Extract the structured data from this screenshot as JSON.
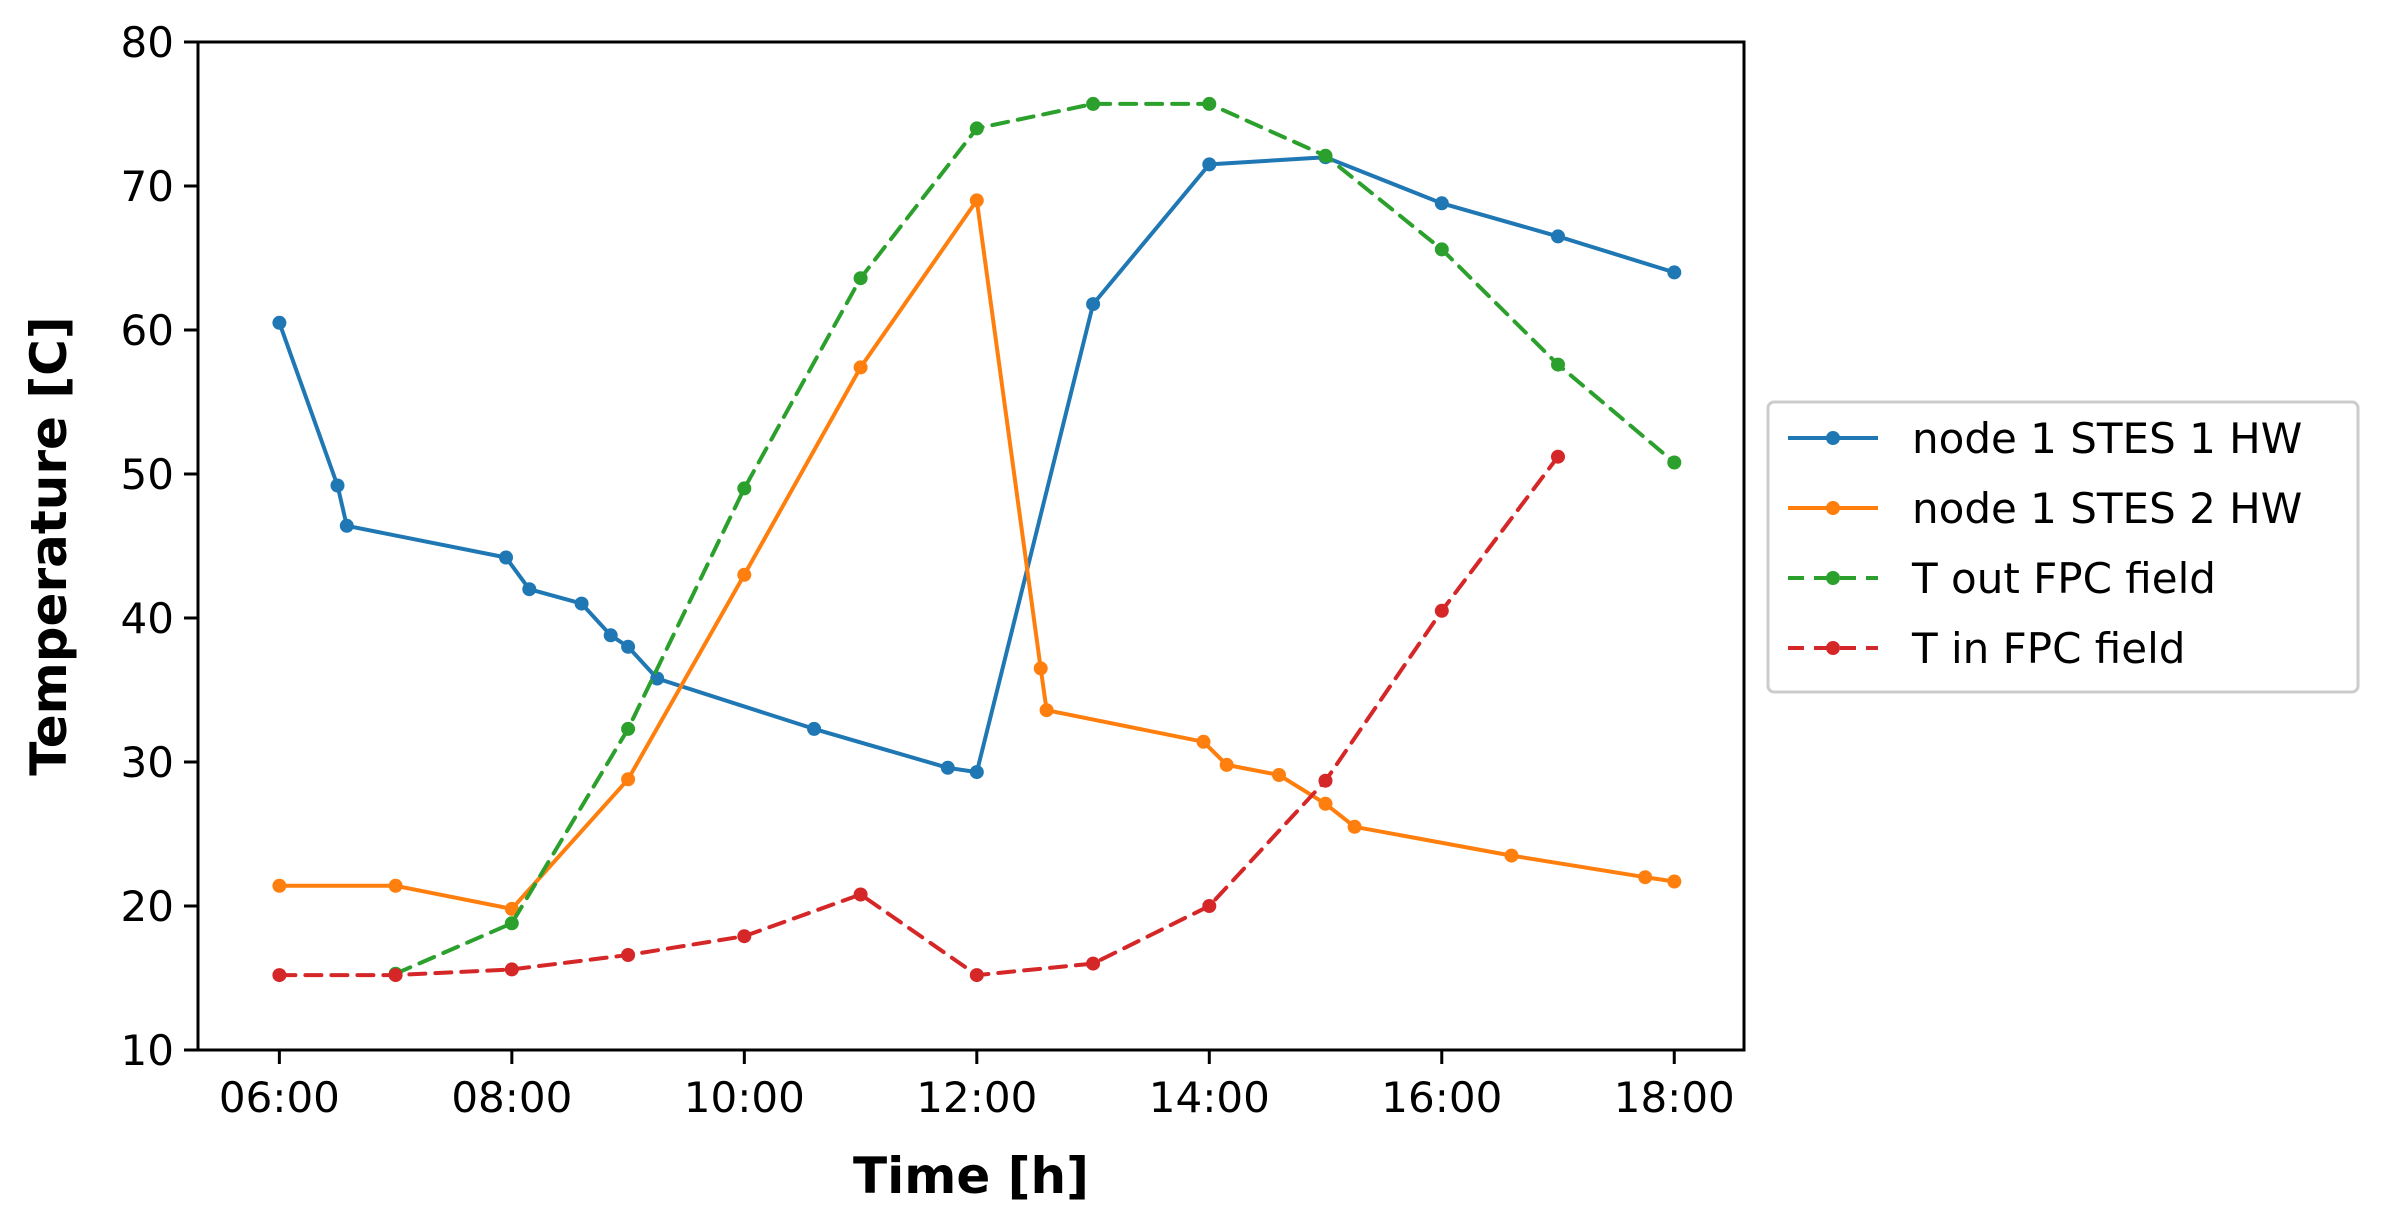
{
  "chart_data": {
    "type": "line",
    "title": "",
    "xlabel": "Time [h]",
    "ylabel": "Temperature [C]",
    "xlim": [
      5.3,
      18.6
    ],
    "ylim": [
      10,
      80
    ],
    "xticks": [
      6,
      8,
      10,
      12,
      14,
      16,
      18
    ],
    "xtick_labels": [
      "06:00",
      "08:00",
      "10:00",
      "12:00",
      "14:00",
      "16:00",
      "18:00"
    ],
    "yticks": [
      10,
      20,
      30,
      40,
      50,
      60,
      70,
      80
    ],
    "ytick_labels": [
      "10",
      "20",
      "30",
      "40",
      "50",
      "60",
      "70",
      "80"
    ],
    "grid": false,
    "legend_position": "outside right, center",
    "series": [
      {
        "name": "node 1 STES 1 HW",
        "color": "#1f77b4",
        "linestyle": "solid",
        "marker": "dot",
        "x": [
          6.0,
          6.5,
          6.58,
          7.95,
          8.15,
          8.6,
          8.85,
          9.0,
          9.25,
          10.6,
          11.75,
          12.0,
          13.0,
          14.0,
          15.0,
          16.0,
          17.0,
          18.0
        ],
        "y": [
          60.5,
          49.2,
          46.4,
          44.2,
          42.0,
          41.0,
          38.8,
          38.0,
          35.8,
          32.3,
          29.6,
          29.3,
          61.8,
          71.5,
          72.0,
          68.8,
          66.5,
          64.0
        ]
      },
      {
        "name": "node 1 STES 2 HW",
        "color": "#ff7f0e",
        "linestyle": "solid",
        "marker": "dot",
        "x": [
          6.0,
          7.0,
          8.0,
          9.0,
          10.0,
          11.0,
          12.0,
          12.55,
          12.6,
          13.95,
          14.15,
          14.6,
          15.0,
          15.25,
          16.6,
          17.75,
          18.0
        ],
        "y": [
          21.4,
          21.4,
          19.8,
          28.8,
          43.0,
          57.4,
          69.0,
          36.5,
          33.6,
          31.4,
          29.8,
          29.1,
          27.1,
          25.5,
          23.5,
          22.0,
          21.7
        ]
      },
      {
        "name": "T out FPC field",
        "color": "#2ca02c",
        "linestyle": "dashed",
        "marker": "dot",
        "x": [
          7.0,
          8.0,
          9.0,
          10.0,
          11.0,
          12.0,
          13.0,
          14.0,
          15.0,
          16.0,
          17.0,
          18.0
        ],
        "y": [
          15.3,
          18.8,
          32.3,
          49.0,
          63.6,
          74.0,
          75.7,
          75.7,
          72.1,
          65.6,
          57.6,
          50.8
        ]
      },
      {
        "name": "T in FPC field",
        "color": "#d62728",
        "linestyle": "dashed",
        "marker": "dot",
        "x": [
          6.0,
          7.0,
          8.0,
          9.0,
          10.0,
          11.0,
          12.0,
          13.0,
          14.0,
          15.0,
          16.0,
          17.0
        ],
        "y": [
          15.2,
          15.2,
          15.6,
          16.6,
          17.9,
          20.8,
          15.2,
          16.0,
          20.0,
          28.7,
          40.5,
          51.2
        ]
      }
    ]
  }
}
